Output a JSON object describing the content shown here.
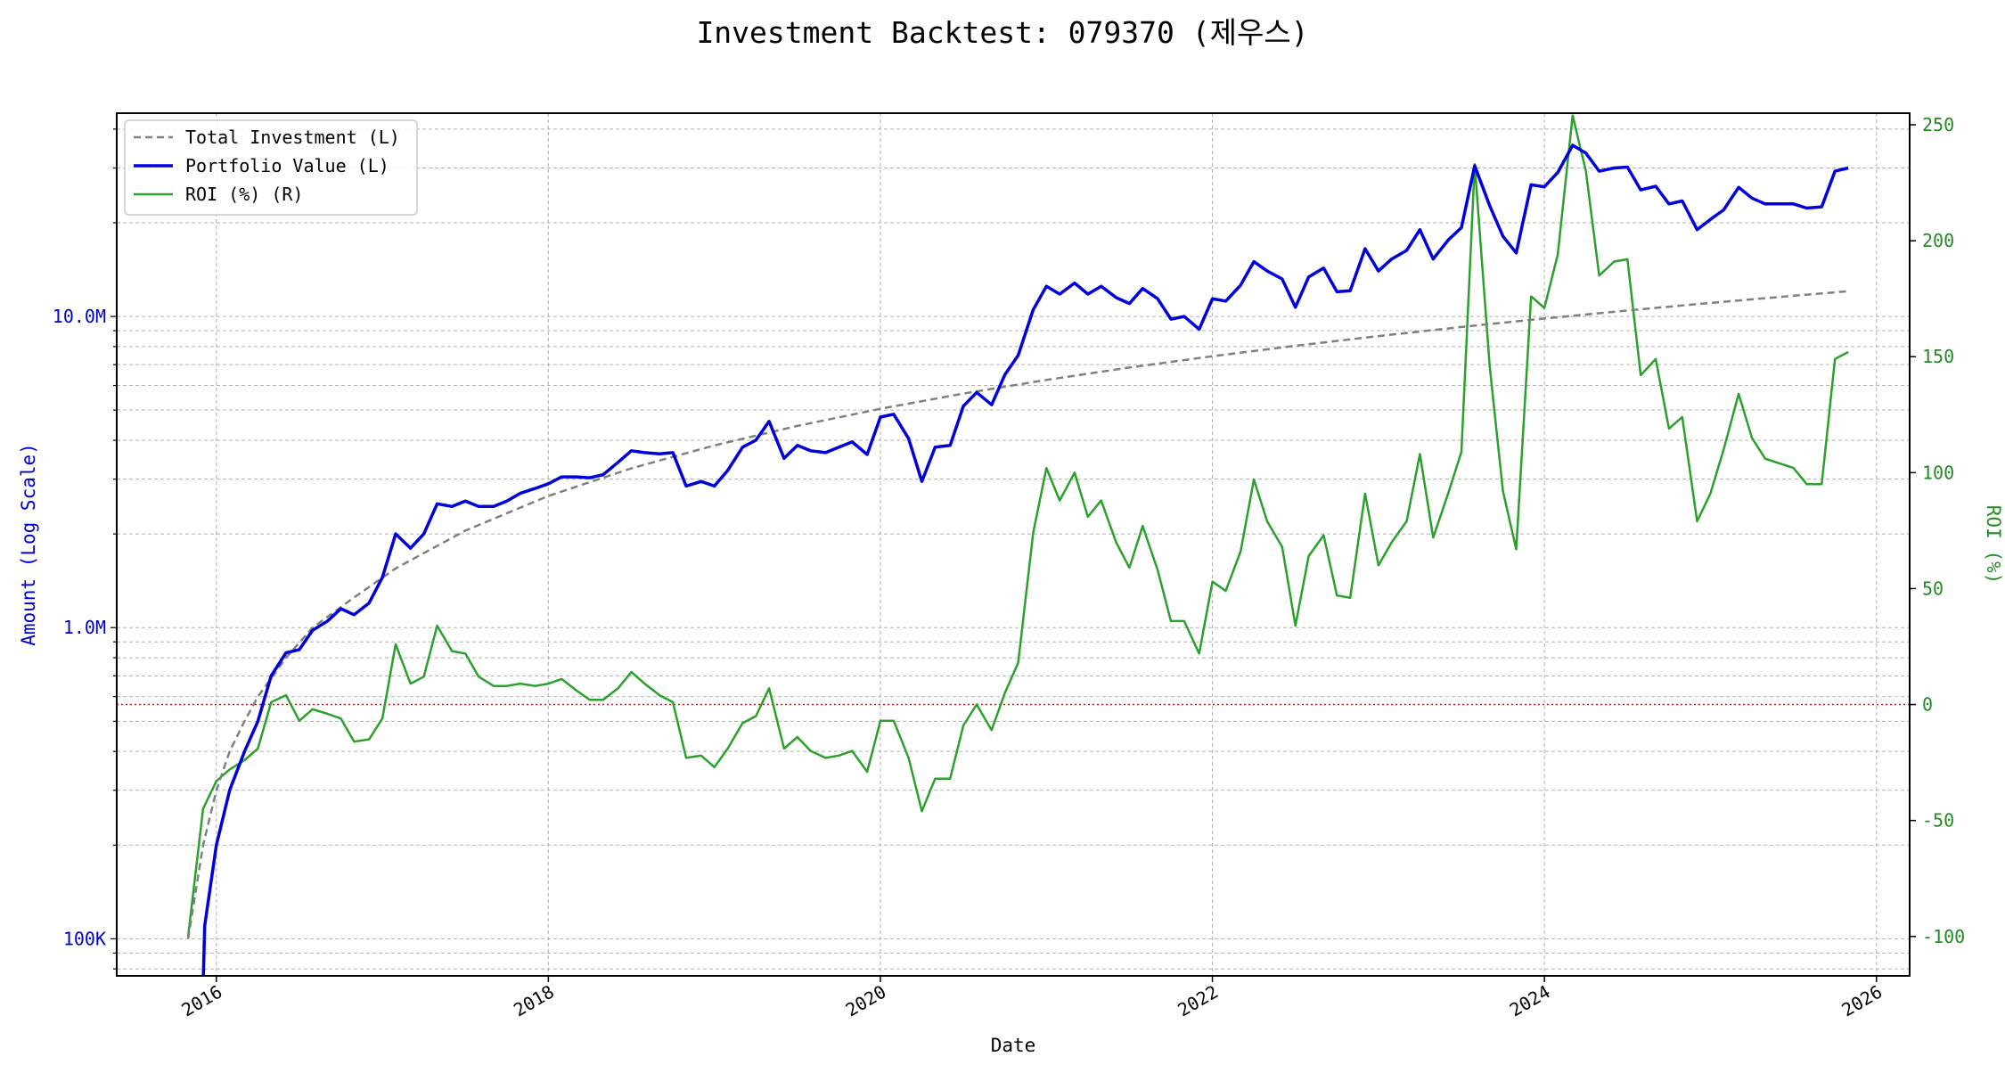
{
  "chart_data": {
    "type": "line",
    "title": "Investment Backtest: 079370 (제우스)",
    "xlabel": "Date",
    "ylabel_left": "Amount (Log Scale)",
    "ylabel_right": "ROI (%)",
    "x_range": [
      2015.4,
      2026.2
    ],
    "x_ticks": [
      2016,
      2018,
      2020,
      2022,
      2024,
      2026
    ],
    "x_tick_labels": [
      "2016",
      "2018",
      "2020",
      "2022",
      "2024",
      "2026"
    ],
    "y_left_scale": "log",
    "y_left_range": [
      76000,
      45000000
    ],
    "y_left_ticks": [
      100000,
      1000000,
      10000000
    ],
    "y_left_tick_labels": [
      "100K",
      "1.0M",
      "10.0M"
    ],
    "y_right_range": [
      -117,
      255
    ],
    "y_right_ticks": [
      -100,
      -50,
      0,
      50,
      100,
      150,
      200,
      250
    ],
    "y_right_tick_labels": [
      "-100",
      "-50",
      "0",
      "50",
      "100",
      "150",
      "200",
      "250"
    ],
    "grid": true,
    "legend_placement": "top-left",
    "reference_line": {
      "axis": "right",
      "value": 0,
      "style": "dotted",
      "color": "#b22222"
    },
    "series": [
      {
        "name": "Total Investment (L)",
        "axis": "left",
        "style": "dashed",
        "color": "#808080",
        "points": [
          [
            2015.83,
            100000
          ],
          [
            2015.92,
            200000
          ],
          [
            2016.0,
            300000
          ],
          [
            2016.08,
            400000
          ],
          [
            2016.17,
            500000
          ],
          [
            2016.25,
            600000
          ],
          [
            2016.42,
            800000
          ],
          [
            2016.58,
            1000000
          ],
          [
            2016.83,
            1250000
          ],
          [
            2017.08,
            1550000
          ],
          [
            2017.5,
            2050000
          ],
          [
            2018.0,
            2650000
          ],
          [
            2018.5,
            3250000
          ],
          [
            2019.0,
            3850000
          ],
          [
            2019.5,
            4450000
          ],
          [
            2020.0,
            5050000
          ],
          [
            2020.5,
            5650000
          ],
          [
            2021.0,
            6250000
          ],
          [
            2021.5,
            6850000
          ],
          [
            2022.0,
            7450000
          ],
          [
            2022.5,
            8050000
          ],
          [
            2023.0,
            8650000
          ],
          [
            2023.5,
            9250000
          ],
          [
            2024.0,
            9850000
          ],
          [
            2024.5,
            10450000
          ],
          [
            2025.0,
            11050000
          ],
          [
            2025.5,
            11650000
          ],
          [
            2025.83,
            12050000
          ]
        ]
      },
      {
        "name": "Portfolio Value (L)",
        "axis": "left",
        "style": "solid",
        "color": "#0000dd",
        "points": [
          [
            2015.92,
            70000
          ],
          [
            2015.93,
            110000
          ],
          [
            2016.0,
            200000
          ],
          [
            2016.08,
            300000
          ],
          [
            2016.17,
            400000
          ],
          [
            2016.25,
            500000
          ],
          [
            2016.33,
            700000
          ],
          [
            2016.42,
            830000
          ],
          [
            2016.5,
            850000
          ],
          [
            2016.58,
            980000
          ],
          [
            2016.67,
            1050000
          ],
          [
            2016.75,
            1150000
          ],
          [
            2016.83,
            1100000
          ],
          [
            2016.92,
            1200000
          ],
          [
            2017.0,
            1450000
          ],
          [
            2017.08,
            2000000
          ],
          [
            2017.17,
            1800000
          ],
          [
            2017.25,
            2000000
          ],
          [
            2017.33,
            2500000
          ],
          [
            2017.42,
            2450000
          ],
          [
            2017.5,
            2550000
          ],
          [
            2017.58,
            2450000
          ],
          [
            2017.67,
            2450000
          ],
          [
            2017.75,
            2550000
          ],
          [
            2017.83,
            2700000
          ],
          [
            2017.92,
            2800000
          ],
          [
            2018.0,
            2900000
          ],
          [
            2018.08,
            3050000
          ],
          [
            2018.17,
            3050000
          ],
          [
            2018.25,
            3030000
          ],
          [
            2018.33,
            3100000
          ],
          [
            2018.42,
            3400000
          ],
          [
            2018.5,
            3700000
          ],
          [
            2018.58,
            3650000
          ],
          [
            2018.67,
            3620000
          ],
          [
            2018.75,
            3650000
          ],
          [
            2018.83,
            2850000
          ],
          [
            2018.92,
            2950000
          ],
          [
            2019.0,
            2850000
          ],
          [
            2019.08,
            3200000
          ],
          [
            2019.17,
            3800000
          ],
          [
            2019.25,
            4000000
          ],
          [
            2019.33,
            4600000
          ],
          [
            2019.42,
            3500000
          ],
          [
            2019.5,
            3850000
          ],
          [
            2019.58,
            3700000
          ],
          [
            2019.67,
            3650000
          ],
          [
            2019.75,
            3800000
          ],
          [
            2019.83,
            3950000
          ],
          [
            2019.92,
            3600000
          ],
          [
            2020.0,
            4750000
          ],
          [
            2020.08,
            4850000
          ],
          [
            2020.17,
            4050000
          ],
          [
            2020.25,
            2950000
          ],
          [
            2020.33,
            3800000
          ],
          [
            2020.42,
            3850000
          ],
          [
            2020.5,
            5150000
          ],
          [
            2020.58,
            5700000
          ],
          [
            2020.67,
            5200000
          ],
          [
            2020.75,
            6500000
          ],
          [
            2020.83,
            7500000
          ],
          [
            2020.92,
            10500000
          ],
          [
            2021.0,
            12500000
          ],
          [
            2021.08,
            11800000
          ],
          [
            2021.17,
            12800000
          ],
          [
            2021.25,
            11800000
          ],
          [
            2021.33,
            12500000
          ],
          [
            2021.42,
            11500000
          ],
          [
            2021.5,
            11000000
          ],
          [
            2021.58,
            12300000
          ],
          [
            2021.67,
            11400000
          ],
          [
            2021.75,
            9800000
          ],
          [
            2021.83,
            10000000
          ],
          [
            2021.92,
            9100000
          ],
          [
            2022.0,
            11400000
          ],
          [
            2022.08,
            11200000
          ],
          [
            2022.17,
            12600000
          ],
          [
            2022.25,
            15000000
          ],
          [
            2022.33,
            14000000
          ],
          [
            2022.42,
            13200000
          ],
          [
            2022.5,
            10700000
          ],
          [
            2022.58,
            13400000
          ],
          [
            2022.67,
            14300000
          ],
          [
            2022.75,
            12000000
          ],
          [
            2022.83,
            12100000
          ],
          [
            2022.92,
            16500000
          ],
          [
            2023.0,
            14000000
          ],
          [
            2023.08,
            15300000
          ],
          [
            2023.17,
            16300000
          ],
          [
            2023.25,
            19000000
          ],
          [
            2023.33,
            15300000
          ],
          [
            2023.42,
            17600000
          ],
          [
            2023.5,
            19300000
          ],
          [
            2023.58,
            30500000
          ],
          [
            2023.67,
            22700000
          ],
          [
            2023.75,
            18100000
          ],
          [
            2023.83,
            16000000
          ],
          [
            2023.92,
            26500000
          ],
          [
            2024.0,
            26100000
          ],
          [
            2024.08,
            29000000
          ],
          [
            2024.17,
            35500000
          ],
          [
            2024.25,
            33500000
          ],
          [
            2024.33,
            29300000
          ],
          [
            2024.42,
            30000000
          ],
          [
            2024.5,
            30200000
          ],
          [
            2024.58,
            25500000
          ],
          [
            2024.67,
            26200000
          ],
          [
            2024.75,
            23000000
          ],
          [
            2024.83,
            23500000
          ],
          [
            2024.92,
            19000000
          ],
          [
            2025.0,
            20500000
          ],
          [
            2025.08,
            22000000
          ],
          [
            2025.17,
            26000000
          ],
          [
            2025.25,
            24000000
          ],
          [
            2025.33,
            23000000
          ],
          [
            2025.5,
            23000000
          ],
          [
            2025.58,
            22300000
          ],
          [
            2025.67,
            22500000
          ],
          [
            2025.75,
            29300000
          ],
          [
            2025.83,
            30000000
          ]
        ]
      },
      {
        "name": "ROI (%) (R)",
        "axis": "right",
        "style": "solid",
        "color": "#2ca02c",
        "points": [
          [
            2015.83,
            -100
          ],
          [
            2015.92,
            -45
          ],
          [
            2016.0,
            -33
          ],
          [
            2016.08,
            -28
          ],
          [
            2016.17,
            -24
          ],
          [
            2016.25,
            -19
          ],
          [
            2016.33,
            1
          ],
          [
            2016.42,
            4
          ],
          [
            2016.5,
            -7
          ],
          [
            2016.58,
            -2
          ],
          [
            2016.67,
            -4
          ],
          [
            2016.75,
            -6
          ],
          [
            2016.83,
            -16
          ],
          [
            2016.92,
            -15
          ],
          [
            2017.0,
            -6
          ],
          [
            2017.08,
            26
          ],
          [
            2017.17,
            9
          ],
          [
            2017.25,
            12
          ],
          [
            2017.33,
            34
          ],
          [
            2017.42,
            23
          ],
          [
            2017.5,
            22
          ],
          [
            2017.58,
            12
          ],
          [
            2017.67,
            8
          ],
          [
            2017.75,
            8
          ],
          [
            2017.83,
            9
          ],
          [
            2017.92,
            8
          ],
          [
            2018.0,
            9
          ],
          [
            2018.08,
            11
          ],
          [
            2018.17,
            6
          ],
          [
            2018.25,
            2
          ],
          [
            2018.33,
            2
          ],
          [
            2018.42,
            7
          ],
          [
            2018.5,
            14
          ],
          [
            2018.58,
            9
          ],
          [
            2018.67,
            4
          ],
          [
            2018.75,
            1
          ],
          [
            2018.83,
            -23
          ],
          [
            2018.92,
            -22
          ],
          [
            2019.0,
            -27
          ],
          [
            2019.08,
            -19
          ],
          [
            2019.17,
            -8
          ],
          [
            2019.25,
            -5
          ],
          [
            2019.33,
            7
          ],
          [
            2019.42,
            -19
          ],
          [
            2019.5,
            -14
          ],
          [
            2019.58,
            -20
          ],
          [
            2019.67,
            -23
          ],
          [
            2019.75,
            -22
          ],
          [
            2019.83,
            -20
          ],
          [
            2019.92,
            -29
          ],
          [
            2020.0,
            -7
          ],
          [
            2020.08,
            -7
          ],
          [
            2020.17,
            -23
          ],
          [
            2020.25,
            -46
          ],
          [
            2020.33,
            -32
          ],
          [
            2020.42,
            -32
          ],
          [
            2020.5,
            -9
          ],
          [
            2020.58,
            0
          ],
          [
            2020.67,
            -11
          ],
          [
            2020.75,
            5
          ],
          [
            2020.83,
            18
          ],
          [
            2020.92,
            74
          ],
          [
            2021.0,
            102
          ],
          [
            2021.08,
            88
          ],
          [
            2021.17,
            100
          ],
          [
            2021.25,
            81
          ],
          [
            2021.33,
            88
          ],
          [
            2021.42,
            70
          ],
          [
            2021.5,
            59
          ],
          [
            2021.58,
            77
          ],
          [
            2021.67,
            58
          ],
          [
            2021.75,
            36
          ],
          [
            2021.83,
            36
          ],
          [
            2021.92,
            22
          ],
          [
            2022.0,
            53
          ],
          [
            2022.08,
            49
          ],
          [
            2022.17,
            66
          ],
          [
            2022.25,
            97
          ],
          [
            2022.33,
            79
          ],
          [
            2022.42,
            68
          ],
          [
            2022.5,
            34
          ],
          [
            2022.58,
            64
          ],
          [
            2022.67,
            73
          ],
          [
            2022.75,
            47
          ],
          [
            2022.83,
            46
          ],
          [
            2022.92,
            91
          ],
          [
            2023.0,
            60
          ],
          [
            2023.08,
            70
          ],
          [
            2023.17,
            79
          ],
          [
            2023.25,
            108
          ],
          [
            2023.33,
            72
          ],
          [
            2023.42,
            91
          ],
          [
            2023.5,
            109
          ],
          [
            2023.58,
            233
          ],
          [
            2023.67,
            146
          ],
          [
            2023.75,
            92
          ],
          [
            2023.83,
            67
          ],
          [
            2023.92,
            176
          ],
          [
            2024.0,
            171
          ],
          [
            2024.08,
            194
          ],
          [
            2024.17,
            254
          ],
          [
            2024.25,
            230
          ],
          [
            2024.33,
            185
          ],
          [
            2024.42,
            191
          ],
          [
            2024.5,
            192
          ],
          [
            2024.58,
            142
          ],
          [
            2024.67,
            149
          ],
          [
            2024.75,
            119
          ],
          [
            2024.83,
            124
          ],
          [
            2024.92,
            79
          ],
          [
            2025.0,
            91
          ],
          [
            2025.08,
            110
          ],
          [
            2025.17,
            134
          ],
          [
            2025.25,
            115
          ],
          [
            2025.33,
            106
          ],
          [
            2025.5,
            102
          ],
          [
            2025.58,
            95
          ],
          [
            2025.67,
            95
          ],
          [
            2025.75,
            149
          ],
          [
            2025.83,
            152
          ]
        ]
      }
    ]
  }
}
